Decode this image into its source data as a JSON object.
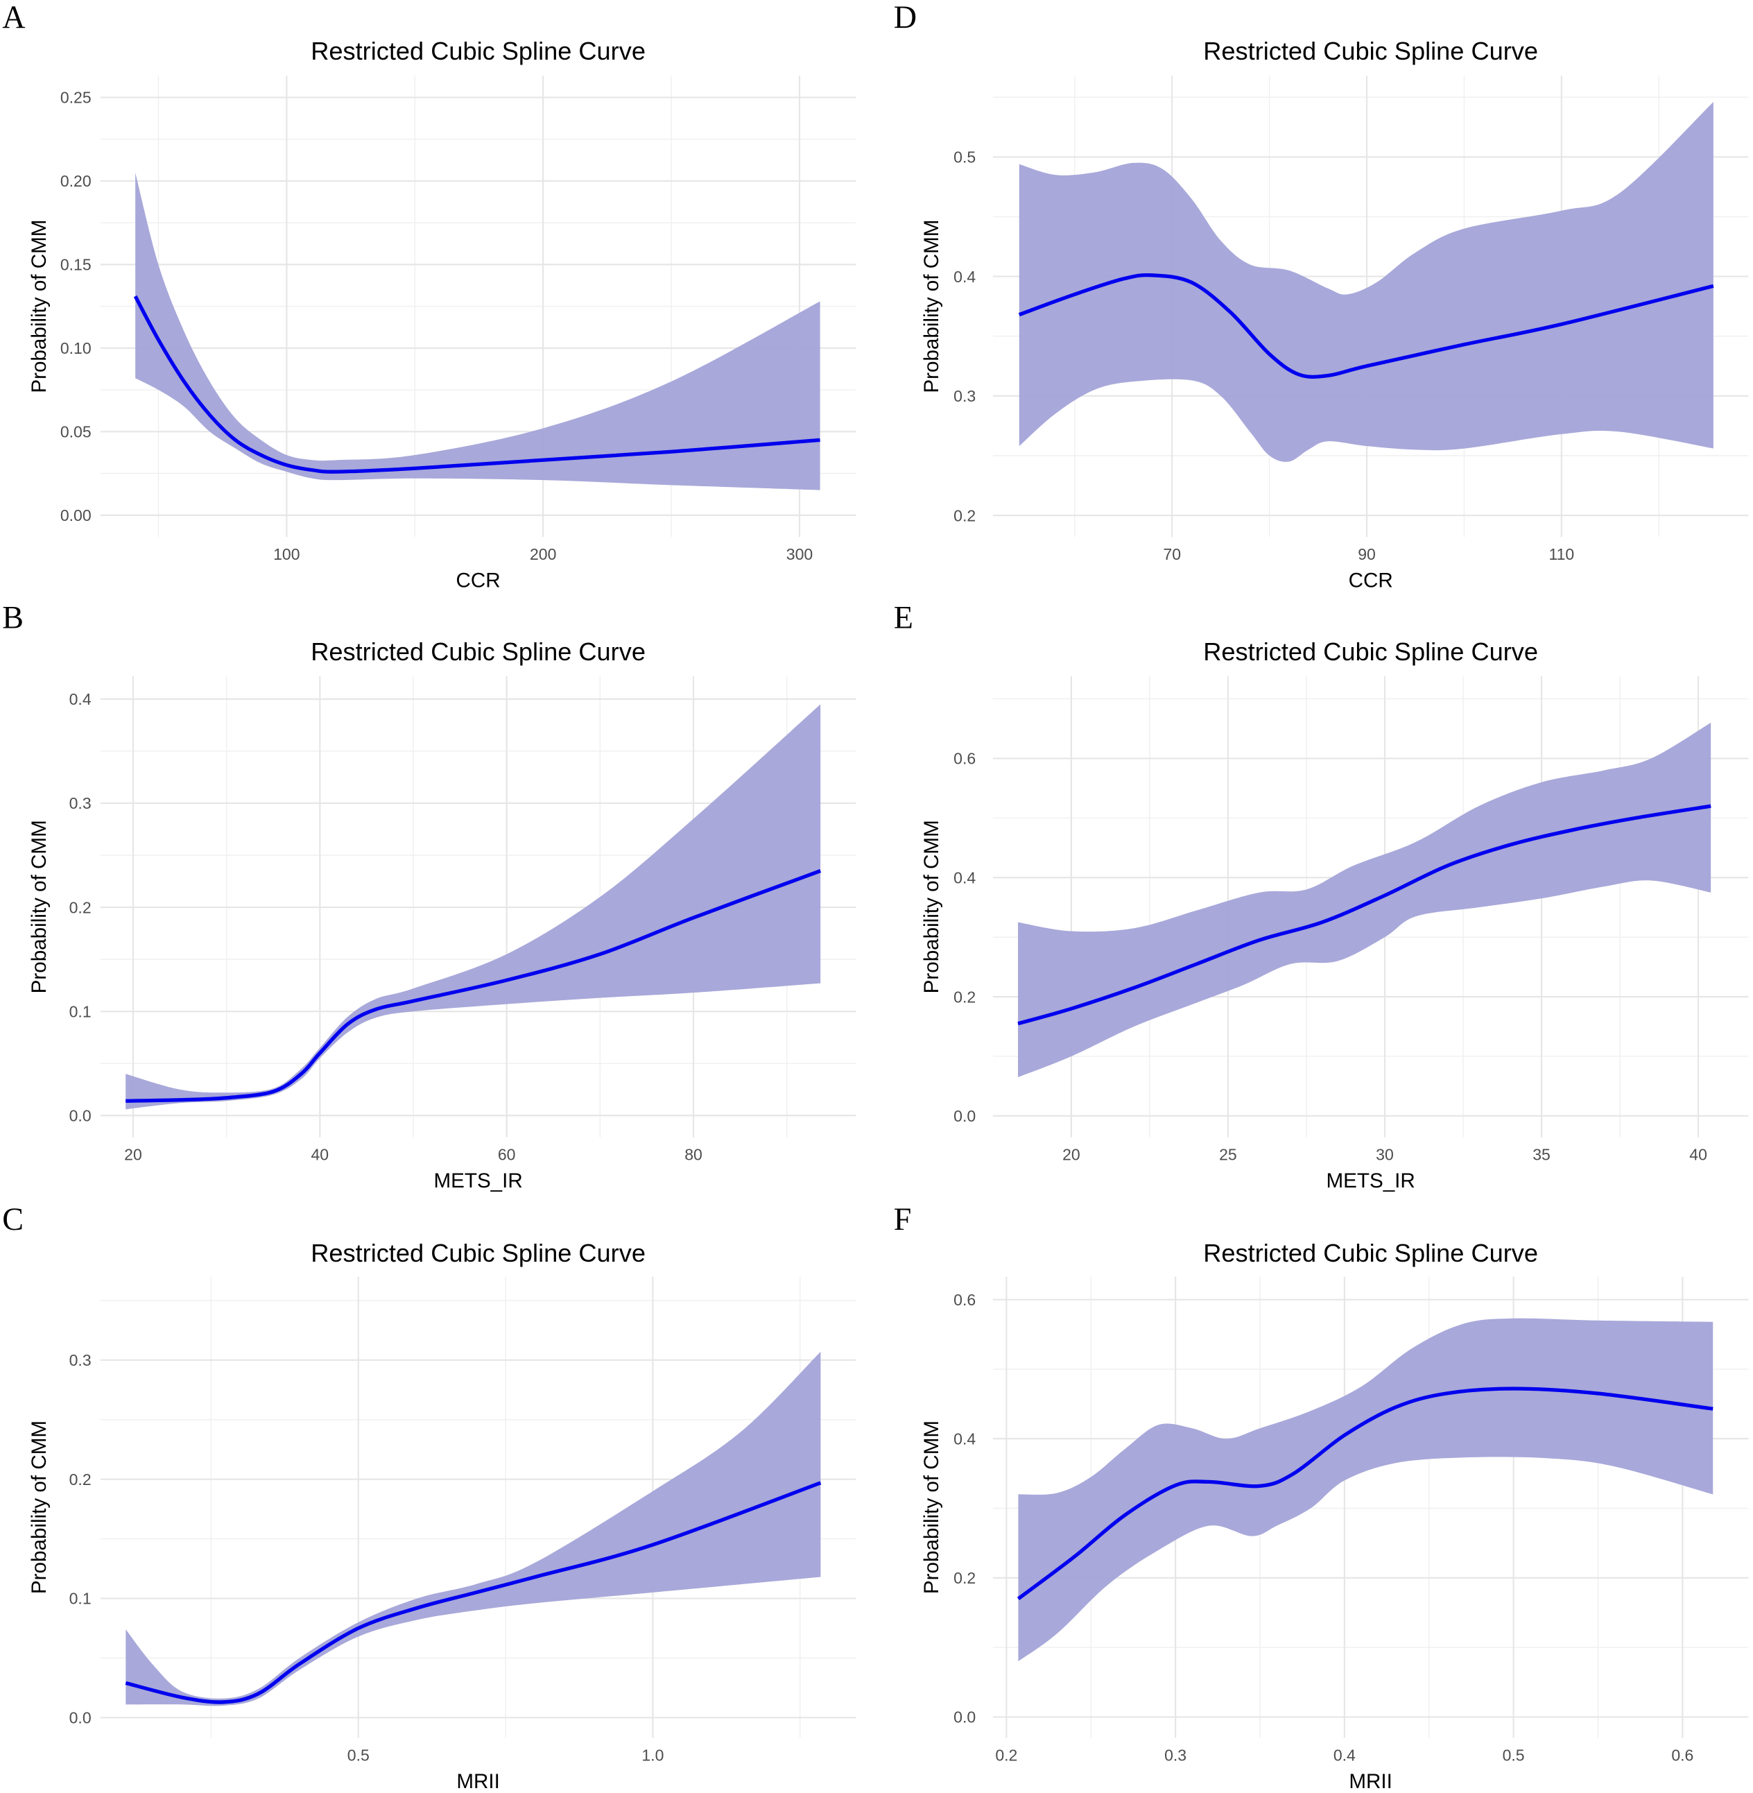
{
  "colors": {
    "band": "#a3a3d8",
    "line": "#0000ee",
    "grid": "#e6e6e6"
  },
  "chart_data": [
    {
      "id": "A",
      "type": "line",
      "title": "Restricted Cubic Spline Curve",
      "xlabel": "CCR",
      "ylabel": "Probability of CMM",
      "xlim": [
        27.4,
        322
      ],
      "ylim": [
        -0.013,
        0.263
      ],
      "xticks": [
        100,
        200,
        300
      ],
      "xtick_labels": [
        "100",
        "200",
        "300"
      ],
      "xminor": [
        50,
        150,
        250
      ],
      "yticks": [
        0,
        0.05,
        0.1,
        0.15,
        0.2,
        0.25
      ],
      "ytick_labels": [
        "0.00",
        "0.05",
        "0.10",
        "0.15",
        "0.20",
        "0.25"
      ],
      "yminor": [
        0.025,
        0.075,
        0.125,
        0.175,
        0.225
      ],
      "fit": [
        [
          41,
          0.131
        ],
        [
          50,
          0.105
        ],
        [
          60,
          0.08
        ],
        [
          70,
          0.06
        ],
        [
          80,
          0.045
        ],
        [
          90,
          0.036
        ],
        [
          100,
          0.03
        ],
        [
          110,
          0.027
        ],
        [
          120,
          0.026
        ],
        [
          150,
          0.028
        ],
        [
          200,
          0.033
        ],
        [
          250,
          0.038
        ],
        [
          308,
          0.045
        ]
      ],
      "upper": [
        [
          41,
          0.205
        ],
        [
          50,
          0.15
        ],
        [
          60,
          0.11
        ],
        [
          70,
          0.08
        ],
        [
          80,
          0.058
        ],
        [
          90,
          0.045
        ],
        [
          100,
          0.036
        ],
        [
          110,
          0.033
        ],
        [
          120,
          0.033
        ],
        [
          150,
          0.036
        ],
        [
          200,
          0.052
        ],
        [
          250,
          0.08
        ],
        [
          308,
          0.128
        ]
      ],
      "lower": [
        [
          41,
          0.082
        ],
        [
          50,
          0.075
        ],
        [
          60,
          0.065
        ],
        [
          70,
          0.05
        ],
        [
          80,
          0.04
        ],
        [
          90,
          0.031
        ],
        [
          100,
          0.026
        ],
        [
          110,
          0.022
        ],
        [
          120,
          0.021
        ],
        [
          150,
          0.022
        ],
        [
          200,
          0.021
        ],
        [
          250,
          0.018
        ],
        [
          308,
          0.015
        ]
      ]
    },
    {
      "id": "B",
      "type": "line",
      "title": "Restricted Cubic Spline Curve",
      "xlabel": "METS_IR",
      "ylabel": "Probability of CMM",
      "xlim": [
        16.5,
        97.4
      ],
      "ylim": [
        -0.021,
        0.422
      ],
      "xticks": [
        20,
        40,
        60,
        80
      ],
      "xtick_labels": [
        "20",
        "40",
        "60",
        "80"
      ],
      "xminor": [
        30,
        50,
        70,
        90
      ],
      "yticks": [
        0,
        0.1,
        0.2,
        0.3,
        0.4
      ],
      "ytick_labels": [
        "0.0",
        "0.1",
        "0.2",
        "0.3",
        "0.4"
      ],
      "yminor": [
        0.05,
        0.15,
        0.25,
        0.35
      ],
      "fit": [
        [
          19.2,
          0.014
        ],
        [
          25,
          0.015
        ],
        [
          30,
          0.017
        ],
        [
          35,
          0.023
        ],
        [
          38,
          0.04
        ],
        [
          40,
          0.06
        ],
        [
          43,
          0.088
        ],
        [
          46,
          0.102
        ],
        [
          50,
          0.11
        ],
        [
          60,
          0.13
        ],
        [
          70,
          0.155
        ],
        [
          80,
          0.19
        ],
        [
          93.6,
          0.235
        ]
      ],
      "upper": [
        [
          19.2,
          0.04
        ],
        [
          25,
          0.025
        ],
        [
          30,
          0.022
        ],
        [
          35,
          0.026
        ],
        [
          38,
          0.045
        ],
        [
          40,
          0.065
        ],
        [
          43,
          0.095
        ],
        [
          46,
          0.112
        ],
        [
          50,
          0.122
        ],
        [
          60,
          0.155
        ],
        [
          70,
          0.21
        ],
        [
          80,
          0.285
        ],
        [
          93.6,
          0.395
        ]
      ],
      "lower": [
        [
          19.2,
          0.006
        ],
        [
          25,
          0.012
        ],
        [
          30,
          0.014
        ],
        [
          35,
          0.02
        ],
        [
          38,
          0.035
        ],
        [
          40,
          0.055
        ],
        [
          43,
          0.08
        ],
        [
          46,
          0.094
        ],
        [
          50,
          0.1
        ],
        [
          60,
          0.107
        ],
        [
          70,
          0.113
        ],
        [
          80,
          0.118
        ],
        [
          93.6,
          0.127
        ]
      ]
    },
    {
      "id": "C",
      "type": "line",
      "title": "Restricted Cubic Spline Curve",
      "xlabel": "MRII",
      "ylabel": "Probability of CMM",
      "xlim": [
        0.062,
        1.345
      ],
      "ylim": [
        -0.017,
        0.37
      ],
      "xticks": [
        0.5,
        1.0
      ],
      "xtick_labels": [
        "0.5",
        "1.0"
      ],
      "xminor": [
        0.25,
        0.75,
        1.25
      ],
      "yticks": [
        0,
        0.1,
        0.2,
        0.3
      ],
      "ytick_labels": [
        "0.0",
        "0.1",
        "0.2",
        "0.3"
      ],
      "yminor": [
        0.05,
        0.15,
        0.25,
        0.35
      ],
      "fit": [
        [
          0.105,
          0.029
        ],
        [
          0.2,
          0.017
        ],
        [
          0.27,
          0.013
        ],
        [
          0.33,
          0.02
        ],
        [
          0.4,
          0.045
        ],
        [
          0.5,
          0.075
        ],
        [
          0.6,
          0.092
        ],
        [
          0.7,
          0.105
        ],
        [
          0.8,
          0.118
        ],
        [
          1.0,
          0.145
        ],
        [
          1.285,
          0.197
        ]
      ],
      "upper": [
        [
          0.105,
          0.074
        ],
        [
          0.15,
          0.045
        ],
        [
          0.2,
          0.022
        ],
        [
          0.27,
          0.016
        ],
        [
          0.33,
          0.024
        ],
        [
          0.4,
          0.05
        ],
        [
          0.5,
          0.08
        ],
        [
          0.6,
          0.1
        ],
        [
          0.7,
          0.112
        ],
        [
          0.8,
          0.13
        ],
        [
          1.0,
          0.19
        ],
        [
          1.15,
          0.24
        ],
        [
          1.285,
          0.307
        ]
      ],
      "lower": [
        [
          0.105,
          0.011
        ],
        [
          0.2,
          0.011
        ],
        [
          0.27,
          0.01
        ],
        [
          0.33,
          0.016
        ],
        [
          0.4,
          0.04
        ],
        [
          0.5,
          0.068
        ],
        [
          0.6,
          0.082
        ],
        [
          0.7,
          0.09
        ],
        [
          0.8,
          0.096
        ],
        [
          1.0,
          0.105
        ],
        [
          1.285,
          0.118
        ]
      ]
    },
    {
      "id": "D",
      "type": "line",
      "title": "Restricted Cubic Spline Curve",
      "xlabel": "CCR",
      "ylabel": "Probability of CMM",
      "xlim": [
        51.6,
        129.2
      ],
      "ylim": [
        0.182,
        0.568
      ],
      "xticks": [
        70,
        90,
        110
      ],
      "xtick_labels": [
        "70",
        "90",
        "110"
      ],
      "xminor": [
        60,
        80,
        100,
        120
      ],
      "yticks": [
        0.2,
        0.3,
        0.4,
        0.5
      ],
      "ytick_labels": [
        "0.2",
        "0.3",
        "0.4",
        "0.5"
      ],
      "yminor": [
        0.25,
        0.35,
        0.45,
        0.55
      ],
      "fit": [
        [
          54.3,
          0.368
        ],
        [
          60,
          0.385
        ],
        [
          65,
          0.398
        ],
        [
          68,
          0.401
        ],
        [
          72,
          0.395
        ],
        [
          76,
          0.37
        ],
        [
          80,
          0.335
        ],
        [
          83,
          0.318
        ],
        [
          86,
          0.317
        ],
        [
          90,
          0.325
        ],
        [
          100,
          0.343
        ],
        [
          110,
          0.36
        ],
        [
          125.6,
          0.392
        ]
      ],
      "upper": [
        [
          54.3,
          0.494
        ],
        [
          58,
          0.485
        ],
        [
          62,
          0.487
        ],
        [
          66,
          0.495
        ],
        [
          69,
          0.49
        ],
        [
          72,
          0.465
        ],
        [
          75,
          0.43
        ],
        [
          78,
          0.41
        ],
        [
          82,
          0.405
        ],
        [
          86,
          0.39
        ],
        [
          88,
          0.385
        ],
        [
          91,
          0.395
        ],
        [
          95,
          0.42
        ],
        [
          100,
          0.44
        ],
        [
          110,
          0.455
        ],
        [
          116,
          0.47
        ],
        [
          125.6,
          0.546
        ]
      ],
      "lower": [
        [
          54.3,
          0.258
        ],
        [
          58,
          0.285
        ],
        [
          62,
          0.305
        ],
        [
          66,
          0.312
        ],
        [
          72,
          0.313
        ],
        [
          75,
          0.3
        ],
        [
          78,
          0.27
        ],
        [
          80,
          0.25
        ],
        [
          82,
          0.245
        ],
        [
          84,
          0.255
        ],
        [
          86,
          0.262
        ],
        [
          90,
          0.258
        ],
        [
          95,
          0.255
        ],
        [
          100,
          0.256
        ],
        [
          110,
          0.268
        ],
        [
          116,
          0.27
        ],
        [
          125.6,
          0.256
        ]
      ]
    },
    {
      "id": "E",
      "type": "line",
      "title": "Restricted Cubic Spline Curve",
      "xlabel": "METS_IR",
      "ylabel": "Probability of CMM",
      "xlim": [
        17.5,
        41.6
      ],
      "ylim": [
        -0.036,
        0.738
      ],
      "xticks": [
        20,
        25,
        30,
        35,
        40
      ],
      "xtick_labels": [
        "20",
        "25",
        "30",
        "35",
        "40"
      ],
      "xminor": [
        22.5,
        27.5,
        32.5,
        37.5
      ],
      "yticks": [
        0,
        0.2,
        0.4,
        0.6
      ],
      "ytick_labels": [
        "0.0",
        "0.2",
        "0.4",
        "0.6"
      ],
      "yminor": [
        0.1,
        0.3,
        0.5,
        0.7
      ],
      "fit": [
        [
          18.3,
          0.155
        ],
        [
          20,
          0.18
        ],
        [
          22,
          0.215
        ],
        [
          24,
          0.255
        ],
        [
          26,
          0.295
        ],
        [
          28,
          0.325
        ],
        [
          30,
          0.37
        ],
        [
          32,
          0.42
        ],
        [
          34,
          0.455
        ],
        [
          36,
          0.48
        ],
        [
          38,
          0.5
        ],
        [
          40.4,
          0.52
        ]
      ],
      "upper": [
        [
          18.3,
          0.325
        ],
        [
          20,
          0.31
        ],
        [
          22,
          0.315
        ],
        [
          24,
          0.345
        ],
        [
          26,
          0.375
        ],
        [
          27.5,
          0.38
        ],
        [
          29,
          0.42
        ],
        [
          31,
          0.46
        ],
        [
          33,
          0.52
        ],
        [
          35,
          0.56
        ],
        [
          37,
          0.58
        ],
        [
          38.5,
          0.6
        ],
        [
          40.4,
          0.66
        ]
      ],
      "lower": [
        [
          18.3,
          0.065
        ],
        [
          20,
          0.1
        ],
        [
          22,
          0.15
        ],
        [
          24,
          0.19
        ],
        [
          25.5,
          0.22
        ],
        [
          27,
          0.255
        ],
        [
          28.5,
          0.26
        ],
        [
          30,
          0.3
        ],
        [
          31,
          0.335
        ],
        [
          33,
          0.35
        ],
        [
          35,
          0.365
        ],
        [
          37,
          0.385
        ],
        [
          38.5,
          0.395
        ],
        [
          40.4,
          0.375
        ]
      ]
    },
    {
      "id": "F",
      "type": "line",
      "title": "Restricted Cubic Spline Curve",
      "xlabel": "MRII",
      "ylabel": "Probability of CMM",
      "xlim": [
        0.192,
        0.639
      ],
      "ylim": [
        -0.03,
        0.633
      ],
      "xticks": [
        0.2,
        0.3,
        0.4,
        0.5,
        0.6
      ],
      "xtick_labels": [
        "0.2",
        "0.3",
        "0.4",
        "0.5",
        "0.6"
      ],
      "xminor": [
        0.25,
        0.35,
        0.45,
        0.55
      ],
      "yticks": [
        0,
        0.2,
        0.4,
        0.6
      ],
      "ytick_labels": [
        "0.0",
        "0.2",
        "0.4",
        "0.6"
      ],
      "yminor": [
        0.1,
        0.3,
        0.5
      ],
      "fit": [
        [
          0.207,
          0.17
        ],
        [
          0.24,
          0.23
        ],
        [
          0.27,
          0.29
        ],
        [
          0.3,
          0.333
        ],
        [
          0.32,
          0.338
        ],
        [
          0.35,
          0.332
        ],
        [
          0.37,
          0.35
        ],
        [
          0.4,
          0.405
        ],
        [
          0.43,
          0.445
        ],
        [
          0.46,
          0.465
        ],
        [
          0.5,
          0.472
        ],
        [
          0.55,
          0.465
        ],
        [
          0.618,
          0.443
        ]
      ],
      "upper": [
        [
          0.207,
          0.32
        ],
        [
          0.23,
          0.322
        ],
        [
          0.25,
          0.345
        ],
        [
          0.27,
          0.385
        ],
        [
          0.29,
          0.42
        ],
        [
          0.31,
          0.415
        ],
        [
          0.33,
          0.4
        ],
        [
          0.35,
          0.415
        ],
        [
          0.38,
          0.44
        ],
        [
          0.41,
          0.475
        ],
        [
          0.44,
          0.53
        ],
        [
          0.47,
          0.565
        ],
        [
          0.5,
          0.573
        ],
        [
          0.55,
          0.57
        ],
        [
          0.618,
          0.568
        ]
      ],
      "lower": [
        [
          0.207,
          0.08
        ],
        [
          0.23,
          0.12
        ],
        [
          0.26,
          0.19
        ],
        [
          0.29,
          0.24
        ],
        [
          0.32,
          0.275
        ],
        [
          0.345,
          0.26
        ],
        [
          0.36,
          0.275
        ],
        [
          0.38,
          0.3
        ],
        [
          0.4,
          0.34
        ],
        [
          0.43,
          0.365
        ],
        [
          0.47,
          0.373
        ],
        [
          0.52,
          0.372
        ],
        [
          0.56,
          0.36
        ],
        [
          0.618,
          0.32
        ]
      ]
    }
  ]
}
